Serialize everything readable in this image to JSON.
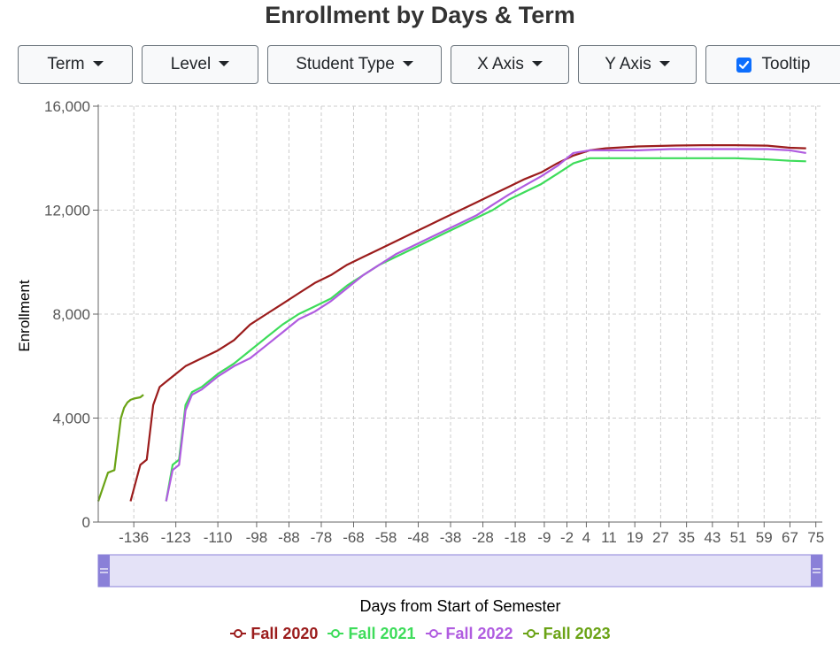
{
  "title": "Enrollment by Days & Term",
  "toolbar": {
    "term": "Term",
    "level": "Level",
    "student_type": "Student Type",
    "x_axis": "X Axis",
    "y_axis": "Y Axis",
    "tooltip": "Tooltip",
    "tooltip_checked": true
  },
  "colors": {
    "Fall 2020": "#9b1c1c",
    "Fall 2021": "#3ddc5a",
    "Fall 2022": "#b05ce0",
    "Fall 2023": "#6aa315",
    "slider": "#8a80d8",
    "slider_fill": "#e4e2f7"
  },
  "chart_data": {
    "type": "line",
    "title": "Enrollment by Days & Term",
    "xlabel": "Days from Start of Semester",
    "ylabel": "Enrollment",
    "xlim": [
      -147,
      77
    ],
    "ylim": [
      0,
      16000
    ],
    "x_ticks": [
      -136,
      -123,
      -110,
      -98,
      -88,
      -78,
      -68,
      -58,
      -48,
      -38,
      -28,
      -18,
      -9,
      -2,
      4,
      11,
      19,
      27,
      35,
      43,
      51,
      59,
      67,
      75
    ],
    "y_ticks": [
      0,
      4000,
      8000,
      12000,
      16000
    ],
    "y_tick_labels": [
      "0",
      "4,000",
      "8,000",
      "12,000",
      "16,000"
    ],
    "grid": true,
    "legend_position": "bottom",
    "series": [
      {
        "name": "Fall 2020",
        "x": [
          -137,
          -134,
          -132,
          -130,
          -128,
          -126,
          -123,
          -120,
          -115,
          -110,
          -105,
          -100,
          -95,
          -90,
          -85,
          -80,
          -75,
          -70,
          -65,
          -60,
          -55,
          -50,
          -45,
          -40,
          -35,
          -30,
          -25,
          -20,
          -15,
          -10,
          -5,
          0,
          5,
          10,
          20,
          30,
          40,
          50,
          60,
          67,
          72
        ],
        "y": [
          800,
          2200,
          2400,
          4500,
          5200,
          5400,
          5700,
          6000,
          6300,
          6600,
          7000,
          7600,
          8000,
          8400,
          8800,
          9200,
          9500,
          9900,
          10200,
          10500,
          10800,
          11100,
          11400,
          11700,
          12000,
          12300,
          12600,
          12900,
          13200,
          13450,
          13800,
          14100,
          14300,
          14380,
          14450,
          14480,
          14500,
          14500,
          14480,
          14400,
          14380
        ]
      },
      {
        "name": "Fall 2021",
        "x": [
          -126,
          -124,
          -122,
          -120,
          -118,
          -115,
          -110,
          -105,
          -100,
          -95,
          -90,
          -85,
          -80,
          -75,
          -70,
          -65,
          -60,
          -55,
          -50,
          -45,
          -40,
          -35,
          -30,
          -25,
          -20,
          -15,
          -10,
          -5,
          0,
          5,
          10,
          20,
          30,
          40,
          50,
          60,
          67,
          72
        ],
        "y": [
          800,
          2200,
          2400,
          4500,
          5000,
          5200,
          5700,
          6100,
          6600,
          7100,
          7600,
          8000,
          8300,
          8600,
          9100,
          9500,
          9900,
          10200,
          10500,
          10800,
          11100,
          11400,
          11700,
          12000,
          12400,
          12700,
          13000,
          13400,
          13800,
          14000,
          14000,
          14000,
          14000,
          14000,
          14000,
          13950,
          13900,
          13880
        ]
      },
      {
        "name": "Fall 2022",
        "x": [
          -126,
          -124,
          -122,
          -120,
          -118,
          -115,
          -110,
          -105,
          -100,
          -95,
          -90,
          -85,
          -80,
          -75,
          -70,
          -65,
          -60,
          -55,
          -50,
          -45,
          -40,
          -35,
          -30,
          -25,
          -20,
          -15,
          -10,
          -5,
          0,
          5,
          10,
          20,
          30,
          40,
          50,
          60,
          67,
          72
        ],
        "y": [
          800,
          2000,
          2200,
          4300,
          4900,
          5100,
          5600,
          6000,
          6300,
          6800,
          7300,
          7800,
          8100,
          8500,
          9000,
          9500,
          9900,
          10300,
          10600,
          10900,
          11200,
          11500,
          11800,
          12200,
          12600,
          12950,
          13300,
          13700,
          14200,
          14300,
          14300,
          14300,
          14350,
          14350,
          14350,
          14350,
          14300,
          14200
        ]
      },
      {
        "name": "Fall 2023",
        "x": [
          -147,
          -144,
          -142,
          -140,
          -139,
          -138,
          -137,
          -136,
          -134,
          -133
        ],
        "y": [
          800,
          1900,
          2000,
          4000,
          4400,
          4600,
          4700,
          4750,
          4800,
          4900
        ]
      }
    ]
  }
}
